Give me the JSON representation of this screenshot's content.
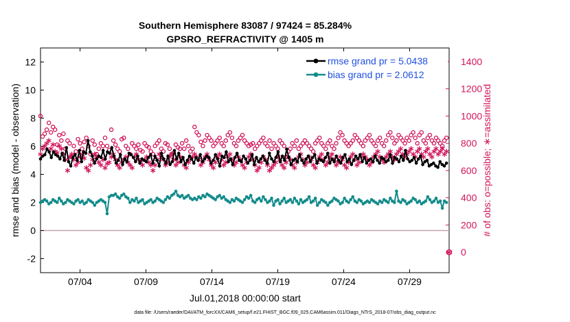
{
  "chart_data": {
    "type": "line",
    "title": "Southern Hemisphere 83087 / 97424 = 85.284%",
    "subtitle": "GPSRO_REFRACTIVITY @ 1405 m",
    "xlabel": "Jul.01,2018 00:00:00 start",
    "ylabel": "rmse and bias (model - observation)",
    "y2label": "# of obs: o=possible; ∗=assimilated",
    "footnote": "data file: /Users/raeder/DAI/ATM_forcXX/CAM6_setup/f.e21.FHIST_BGC.f09_025.CAM6assim.011/Diags_NTrS_2018-07/obs_diag_output.nc",
    "xlim": [
      1,
      32
    ],
    "ylim": [
      -3,
      13
    ],
    "y2lim": [
      -150,
      1500
    ],
    "x_ticks": [
      4,
      9,
      14,
      19,
      24,
      29
    ],
    "x_tick_labels": [
      "07/04",
      "07/09",
      "07/14",
      "07/19",
      "07/24",
      "07/29"
    ],
    "y_ticks": [
      -2,
      0,
      2,
      4,
      6,
      8,
      10,
      12
    ],
    "y_tick_labels": [
      "-2",
      "0",
      "2",
      "4",
      "6",
      "8",
      "10",
      "12"
    ],
    "y2_ticks": [
      0,
      200,
      400,
      600,
      800,
      1000,
      1200,
      1400
    ],
    "y2_tick_labels": [
      "0",
      "200",
      "400",
      "600",
      "800",
      "1000",
      "1200",
      "1400"
    ],
    "zero_line": 0,
    "legend_position": "top-right",
    "series": [
      {
        "name": "rmse grand pr = 5.0438",
        "color": "#000000",
        "marker": "filled-circle",
        "values": [
          5.1,
          5.3,
          5.4,
          5.8,
          5.6,
          5.2,
          5.6,
          5.4,
          5.3,
          5.1,
          5.5,
          5.0,
          5.9,
          4.9,
          4.6,
          5.2,
          5.4,
          5.0,
          5.7,
          4.9,
          5.6,
          5.5,
          6.4,
          5.6,
          5.3,
          4.8,
          5.1,
          5.3,
          5.2,
          5.7,
          5.1,
          5.6,
          5.5,
          5.9,
          5.3,
          4.8,
          5.0,
          5.4,
          4.7,
          5.1,
          4.9,
          5.5,
          5.4,
          5.2,
          4.9,
          5.3,
          4.8,
          5.1,
          5.0,
          4.9,
          5.2,
          5.4,
          4.8,
          5.3,
          5.0,
          4.6,
          5.5,
          5.1,
          4.8,
          5.3,
          4.7,
          4.9,
          5.7,
          5.1,
          5.5,
          4.9,
          5.2,
          4.7,
          5.0,
          5.3,
          5.1,
          4.8,
          5.2,
          5.0,
          5.4,
          4.9,
          5.1,
          5.3,
          5.2,
          4.8,
          5.0,
          5.4,
          5.1,
          4.6,
          5.3,
          5.2,
          5.6,
          4.9,
          5.1,
          4.7,
          5.2,
          5.5,
          5.0,
          4.9,
          5.3,
          5.1,
          4.8,
          5.0,
          5.4,
          4.7,
          5.2,
          4.9,
          5.1,
          5.3,
          5.0,
          4.8,
          5.5,
          5.1,
          4.9,
          5.2,
          5.6,
          4.9,
          5.3,
          5.0,
          5.8,
          5.2,
          4.7,
          5.0,
          5.1,
          4.9,
          5.4,
          5.0,
          4.8,
          5.1,
          5.3,
          4.9,
          5.2,
          5.4,
          4.8,
          5.1,
          5.0,
          4.9,
          5.2,
          5.5,
          4.8,
          5.1,
          4.9,
          5.3,
          5.0,
          4.8,
          5.2,
          5.4,
          4.9,
          5.1,
          4.7,
          5.0,
          5.3,
          5.1,
          5.4,
          4.9,
          5.2,
          4.8,
          5.0,
          5.1,
          4.9,
          5.3,
          5.0,
          4.8,
          5.2,
          5.1,
          4.9,
          5.0,
          5.4,
          4.8,
          5.2,
          5.1,
          4.9,
          5.3,
          5.0,
          5.7,
          5.1,
          4.9,
          5.0,
          5.2,
          4.8,
          5.1,
          5.3,
          4.7,
          4.9,
          5.0,
          4.6,
          4.7,
          4.8,
          4.6,
          4.5,
          4.9,
          4.7,
          4.6,
          4.8
        ]
      },
      {
        "name": "bias grand pr = 2.0612",
        "color": "#138b8b",
        "marker": "filled-circle",
        "values": [
          2.0,
          2.1,
          2.2,
          2.1,
          1.9,
          2.0,
          2.2,
          2.1,
          2.0,
          2.3,
          2.1,
          1.9,
          2.0,
          2.2,
          2.1,
          2.0,
          1.9,
          2.1,
          2.2,
          2.0,
          2.1,
          1.9,
          2.0,
          2.2,
          2.1,
          2.0,
          1.8,
          2.0,
          2.1,
          2.2,
          2.1,
          2.0,
          1.2,
          2.4,
          2.5,
          2.5,
          2.6,
          2.4,
          2.3,
          2.5,
          2.6,
          2.4,
          2.3,
          2.0,
          2.2,
          2.1,
          2.3,
          2.0,
          2.1,
          2.2,
          1.9,
          2.0,
          2.1,
          2.2,
          2.0,
          2.1,
          2.3,
          2.2,
          2.1,
          2.0,
          2.2,
          2.4,
          2.3,
          2.5,
          2.6,
          2.8,
          2.5,
          2.4,
          2.5,
          2.3,
          2.4,
          2.5,
          2.3,
          2.2,
          2.3,
          2.2,
          2.4,
          2.3,
          2.5,
          2.4,
          2.6,
          2.5,
          2.4,
          2.3,
          2.2,
          2.4,
          2.5,
          2.3,
          2.4,
          2.2,
          2.1,
          2.0,
          2.2,
          2.1,
          2.3,
          2.2,
          2.1,
          2.0,
          2.2,
          2.4,
          2.3,
          2.5,
          2.1,
          2.0,
          2.2,
          2.3,
          2.1,
          2.4,
          2.2,
          2.0,
          2.1,
          2.3,
          1.8,
          2.1,
          2.2,
          1.9,
          2.1,
          2.3,
          2.0,
          2.1,
          2.2,
          2.0,
          2.3,
          2.1,
          1.9,
          2.2,
          2.0,
          2.1,
          2.2,
          2.4,
          2.0,
          2.1,
          2.3,
          1.8,
          2.0,
          2.2,
          2.1,
          2.0,
          1.8,
          2.0,
          2.1,
          2.3,
          2.2,
          2.1,
          1.9,
          2.0,
          2.3,
          2.1,
          2.0,
          2.2,
          2.4,
          2.1,
          2.0,
          2.2,
          2.1,
          1.9,
          2.0,
          2.1,
          2.0,
          2.2,
          2.1,
          2.0,
          1.9,
          2.1,
          2.0,
          2.2,
          2.1,
          2.0,
          2.3,
          2.1,
          2.0,
          2.8,
          2.1,
          2.0,
          2.2,
          2.1,
          1.9,
          2.0,
          2.1,
          2.3,
          2.2,
          2.0,
          2.1,
          1.9,
          2.0,
          2.1,
          2.4,
          2.2,
          2.0,
          2.1,
          2.3,
          2.0,
          2.1,
          1.6,
          2.1,
          2.0
        ]
      },
      {
        "name": "possible obs",
        "axis": "right",
        "color": "#d0145a",
        "marker": "open-circle",
        "values": [
          1000,
          850,
          870,
          900,
          950,
          880,
          920,
          900,
          790,
          860,
          820,
          870,
          760,
          820,
          800,
          700,
          780,
          740,
          830,
          800,
          760,
          810,
          840,
          780,
          720,
          820,
          790,
          720,
          760,
          800,
          780,
          840,
          780,
          750,
          900,
          820,
          790,
          760,
          740,
          830,
          840,
          780,
          760,
          720,
          800,
          780,
          760,
          790,
          750,
          740,
          800,
          780,
          770,
          740,
          720,
          780,
          800,
          820,
          760,
          740,
          800,
          790,
          760,
          720,
          730,
          790,
          770,
          760,
          800,
          760,
          820,
          780,
          740,
          760,
          920,
          880,
          860,
          810,
          780,
          820,
          860,
          840,
          820,
          780,
          800,
          820,
          840,
          800,
          780,
          820,
          860,
          880,
          840,
          800,
          780,
          820,
          840,
          860,
          820,
          800,
          780,
          790,
          800,
          760,
          780,
          800,
          820,
          840,
          800,
          780,
          820,
          760,
          800,
          780,
          760,
          820,
          800,
          780,
          700,
          740,
          760,
          800,
          780,
          820,
          760,
          780,
          800,
          820,
          800,
          780,
          760,
          740,
          800,
          820,
          840,
          800,
          780,
          760,
          800,
          820,
          780,
          760,
          800,
          840,
          880,
          860,
          820,
          800,
          780,
          800,
          820,
          860,
          840,
          820,
          800,
          780,
          820,
          840,
          860,
          820,
          800,
          780,
          820,
          840,
          800,
          780,
          820,
          860,
          880,
          840,
          800,
          820,
          860,
          840,
          820,
          800,
          840,
          820,
          860,
          880,
          840,
          800,
          860,
          880,
          820,
          800,
          840,
          860,
          820,
          800,
          840,
          820,
          800,
          780,
          820,
          840
        ]
      },
      {
        "name": "assimilated obs",
        "axis": "right",
        "color": "#d0145a",
        "marker": "asterisk",
        "values": [
          720,
          760,
          780,
          800,
          820,
          760,
          790,
          740,
          730,
          780,
          760,
          720,
          680,
          600,
          700,
          720,
          680,
          640,
          660,
          700,
          720,
          690,
          620,
          600,
          640,
          680,
          720,
          700,
          660,
          640,
          680,
          620,
          650,
          660,
          700,
          720,
          680,
          640,
          620,
          660,
          680,
          700,
          660,
          640,
          620,
          700,
          720,
          680,
          660,
          640,
          680,
          700,
          660,
          640,
          600,
          640,
          680,
          720,
          700,
          680,
          640,
          660,
          700,
          720,
          680,
          640,
          660,
          700,
          680,
          640,
          620,
          660,
          680,
          700,
          720,
          700,
          680,
          640,
          660,
          700,
          720,
          680,
          640,
          620,
          660,
          700,
          720,
          680,
          640,
          660,
          700,
          720,
          680,
          640,
          660,
          700,
          680,
          640,
          620,
          660,
          700,
          720,
          680,
          640,
          600,
          620,
          660,
          700,
          680,
          640,
          600,
          620,
          640,
          660,
          700,
          680,
          640,
          620,
          660,
          700,
          680,
          640,
          620,
          660,
          700,
          720,
          680,
          640,
          660,
          700,
          680,
          640,
          620,
          660,
          700,
          720,
          680,
          640,
          660,
          700,
          720,
          680,
          640,
          660,
          700,
          680,
          640,
          620,
          660,
          700,
          720,
          680,
          640,
          660,
          700,
          720,
          700,
          680,
          640,
          660,
          700,
          720,
          740,
          700,
          680,
          660,
          700,
          720,
          740,
          700,
          680,
          720,
          740,
          760,
          720,
          700,
          720,
          740,
          760,
          720,
          700,
          740,
          760,
          720,
          700,
          740,
          760,
          720,
          700,
          740,
          760,
          720,
          740,
          760,
          720,
          740
        ]
      }
    ],
    "outlier_point": {
      "x": 32.0,
      "y2": 0,
      "marker": "asterisk-circle",
      "color": "#d0145a"
    }
  }
}
